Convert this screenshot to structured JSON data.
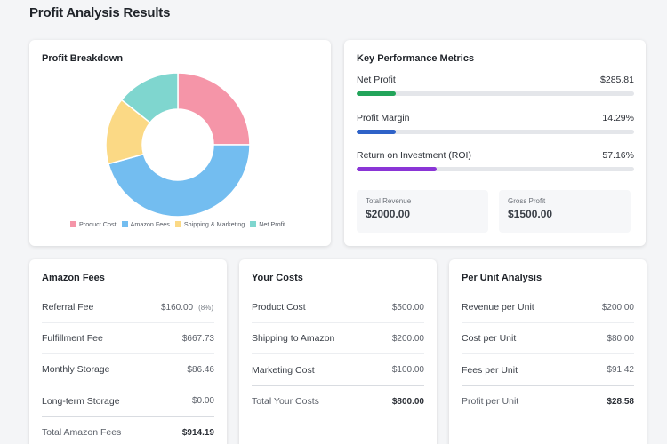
{
  "page": {
    "title": "Profit Analysis Results"
  },
  "breakdown": {
    "title": "Profit Breakdown",
    "colors": {
      "product": "#f595a8",
      "amazon": "#73bdf0",
      "shipping": "#fbd985",
      "profit": "#7fd6cf"
    },
    "legend": [
      {
        "label": "Product Cost",
        "color": "#f595a8"
      },
      {
        "label": "Amazon Fees",
        "color": "#73bdf0"
      },
      {
        "label": "Shipping & Marketing",
        "color": "#fbd985"
      },
      {
        "label": "Net Profit",
        "color": "#7fd6cf"
      }
    ]
  },
  "chart_data": {
    "type": "pie",
    "categories": [
      "Product Cost",
      "Amazon Fees",
      "Shipping & Marketing",
      "Net Profit"
    ],
    "values": [
      500.0,
      914.19,
      300.0,
      285.81
    ],
    "donut": true
  },
  "kpi": {
    "title": "Key Performance Metrics",
    "metrics": [
      {
        "label": "Net Profit",
        "value": "$285.81",
        "fill_fraction": 0.14,
        "color": "#22a45a"
      },
      {
        "label": "Profit Margin",
        "value": "14.29%",
        "fill_fraction": 0.14,
        "color": "#2e62c8"
      },
      {
        "label": "Return on Investment (ROI)",
        "value": "57.16%",
        "fill_fraction": 0.29,
        "color": "#8a35d6"
      }
    ],
    "total_revenue": {
      "label": "Total Revenue",
      "value": "$2000.00"
    },
    "gross_profit": {
      "label": "Gross Profit",
      "value": "$1500.00"
    }
  },
  "fees": {
    "title": "Amazon Fees",
    "rows": [
      {
        "label": "Referral Fee",
        "value": "$160.00",
        "note": "(8%)"
      },
      {
        "label": "Fulfillment Fee",
        "value": "$667.73"
      },
      {
        "label": "Monthly Storage",
        "value": "$86.46"
      },
      {
        "label": "Long-term Storage",
        "value": "$0.00"
      }
    ],
    "total": {
      "label": "Total Amazon Fees",
      "value": "$914.19"
    }
  },
  "costs": {
    "title": "Your Costs",
    "rows": [
      {
        "label": "Product Cost",
        "value": "$500.00"
      },
      {
        "label": "Shipping to Amazon",
        "value": "$200.00"
      },
      {
        "label": "Marketing Cost",
        "value": "$100.00"
      }
    ],
    "total": {
      "label": "Total Your Costs",
      "value": "$800.00"
    }
  },
  "unit": {
    "title": "Per Unit Analysis",
    "rows": [
      {
        "label": "Revenue per Unit",
        "value": "$200.00"
      },
      {
        "label": "Cost per Unit",
        "value": "$80.00"
      },
      {
        "label": "Fees per Unit",
        "value": "$91.42"
      }
    ],
    "total": {
      "label": "Profit per Unit",
      "value": "$28.58"
    }
  }
}
